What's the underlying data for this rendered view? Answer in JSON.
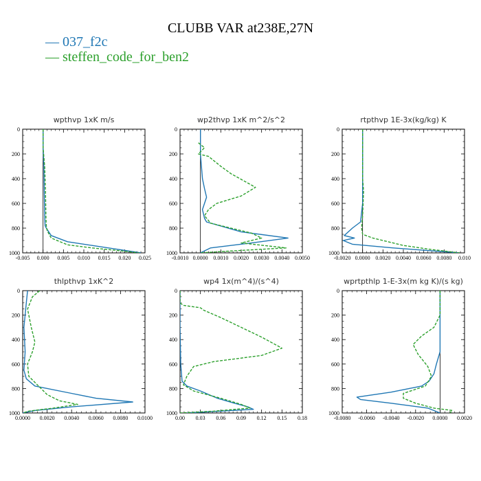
{
  "title": "CLUBB VAR at238E,27N",
  "legend": [
    {
      "label": "— 037_f2c",
      "color": "#1f77b4"
    },
    {
      "label": "— steffen_code_for_ben2",
      "color": "#2ca02c"
    }
  ],
  "chart_data": [
    {
      "type": "line",
      "title": "wpthvp  1xK m/s",
      "xlim": [
        -0.005,
        0.025
      ],
      "ylim": [
        0,
        1000
      ],
      "y_inverted": true,
      "xticks": [
        "-0.005",
        "0.000",
        "0.005",
        "0.010",
        "0.015",
        "0.020",
        "0.025"
      ],
      "yticks": [
        "0",
        "200",
        "400",
        "600",
        "800",
        "1000"
      ],
      "series": [
        {
          "name": "037_f2c",
          "color": "#1f77b4",
          "dash": "solid",
          "x": [
            0.0,
            0.0,
            0.0002,
            0.0003,
            0.0004,
            0.0005,
            0.0008,
            0.002,
            0.006,
            0.012,
            0.018,
            0.024
          ],
          "y": [
            0,
            150,
            300,
            500,
            700,
            780,
            800,
            860,
            910,
            940,
            970,
            1000
          ]
        },
        {
          "name": "steffen_code_for_ben2",
          "color": "#2ca02c",
          "dash": "dashed",
          "x": [
            0.0,
            0.0,
            0.0004,
            0.0006,
            0.0007,
            0.0008,
            0.001,
            0.002,
            0.006,
            0.012,
            0.018,
            0.0235
          ],
          "y": [
            0,
            150,
            300,
            500,
            700,
            780,
            820,
            880,
            935,
            960,
            980,
            1000
          ]
        }
      ]
    },
    {
      "type": "line",
      "title": "wp2thvp  1xK m^2/s^2",
      "xlim": [
        -0.001,
        0.005
      ],
      "ylim": [
        0,
        1000
      ],
      "y_inverted": true,
      "xticks": [
        "-0.0010",
        "0.0000",
        "0.0010",
        "0.0020",
        "0.0030",
        "0.0040",
        "0.0050"
      ],
      "yticks": [
        "0",
        "200",
        "400",
        "600",
        "800",
        "1000"
      ],
      "series": [
        {
          "name": "037_f2c",
          "color": "#1f77b4",
          "dash": "solid",
          "x": [
            0.0,
            0.0,
            0.0001,
            0.0002,
            0.0003,
            0.0002,
            0.0001,
            0.0002,
            0.0003,
            0.002,
            0.0043,
            0.0025,
            0.0005,
            0.0
          ],
          "y": [
            0,
            200,
            400,
            480,
            550,
            600,
            650,
            720,
            750,
            830,
            880,
            920,
            960,
            1000
          ]
        },
        {
          "name": "steffen_code_for_ben2",
          "color": "#2ca02c",
          "dash": "dashed",
          "x": [
            -0.0001,
            0.0002,
            -0.0001,
            0.0004,
            0.001,
            0.0015,
            0.0027,
            0.002,
            0.0008,
            0.0004,
            0.0002,
            0.0005,
            0.0015,
            0.0025,
            0.003,
            0.002,
            0.0042,
            0.002,
            0.0
          ],
          "y": [
            110,
            150,
            200,
            220,
            300,
            360,
            470,
            540,
            600,
            650,
            700,
            760,
            800,
            840,
            880,
            920,
            960,
            980,
            1000
          ]
        }
      ]
    },
    {
      "type": "line",
      "title": "rtpthvp  1E-3x(kg/kg) K",
      "xlim": [
        -0.002,
        0.01
      ],
      "ylim": [
        0,
        1000
      ],
      "y_inverted": true,
      "xticks": [
        "-0.0020",
        "0.0000",
        "0.0020",
        "0.0040",
        "0.0060",
        "0.0080",
        "0.010"
      ],
      "yticks": [
        "0",
        "200",
        "400",
        "600",
        "800",
        "1000"
      ],
      "series": [
        {
          "name": "037_f2c",
          "color": "#1f77b4",
          "dash": "solid",
          "x": [
            0.0,
            0.0,
            -0.0002,
            -0.001,
            -0.0018,
            -0.0008,
            -0.0019,
            -0.001,
            0.003,
            0.0095
          ],
          "y": [
            0,
            600,
            750,
            800,
            860,
            880,
            900,
            930,
            960,
            1000
          ]
        },
        {
          "name": "steffen_code_for_ben2",
          "color": "#2ca02c",
          "dash": "dashed",
          "x": [
            0.0,
            0.0,
            0.0001,
            0.0,
            -0.0001,
            0.0,
            0.001,
            0.002,
            0.004,
            0.0065,
            0.0085,
            0.0095
          ],
          "y": [
            0,
            400,
            500,
            700,
            800,
            850,
            880,
            900,
            940,
            970,
            990,
            1000
          ]
        }
      ]
    },
    {
      "type": "line",
      "title": "thlpthvp  1xK^2",
      "xlim": [
        0.0,
        0.01
      ],
      "ylim": [
        0,
        1000
      ],
      "y_inverted": true,
      "xticks": [
        "0.0000",
        "0.0020",
        "0.0040",
        "0.0060",
        "0.0080",
        "0.0100"
      ],
      "yticks": [
        "0",
        "200",
        "400",
        "600",
        "800",
        "1000"
      ],
      "series": [
        {
          "name": "037_f2c",
          "color": "#1f77b4",
          "dash": "solid",
          "x": [
            0.0004,
            0.0003,
            0.0001,
            0.0002,
            0.0001,
            0.0003,
            0.001,
            0.004,
            0.006,
            0.009,
            0.004,
            0.001,
            0.0
          ],
          "y": [
            0,
            100,
            300,
            500,
            650,
            720,
            780,
            840,
            880,
            910,
            950,
            980,
            1000
          ]
        },
        {
          "name": "steffen_code_for_ben2",
          "color": "#2ca02c",
          "dash": "dashed",
          "x": [
            0.0014,
            0.0008,
            0.0004,
            0.0007,
            0.001,
            0.0008,
            0.0004,
            0.0005,
            0.0015,
            0.002,
            0.003,
            0.0045,
            0.0025,
            0.0005,
            0.0
          ],
          "y": [
            0,
            50,
            150,
            300,
            420,
            500,
            600,
            700,
            800,
            850,
            900,
            930,
            960,
            985,
            1000
          ]
        }
      ]
    },
    {
      "type": "line",
      "title": "wp4  1x(m^4)/(s^4)",
      "xlim": [
        0.0,
        0.18
      ],
      "ylim": [
        0,
        1000
      ],
      "y_inverted": true,
      "xticks": [
        "0.00",
        "0.03",
        "0.06",
        "0.09",
        "0.12",
        "0.15",
        "0.18"
      ],
      "yticks": [
        "0",
        "200",
        "400",
        "600",
        "800",
        "1000"
      ],
      "series": [
        {
          "name": "037_f2c",
          "color": "#1f77b4",
          "dash": "solid",
          "x": [
            0.0,
            0.0,
            0.001,
            0.003,
            0.01,
            0.03,
            0.055,
            0.08,
            0.1,
            0.108,
            0.06,
            0.01
          ],
          "y": [
            0,
            300,
            600,
            740,
            780,
            820,
            880,
            920,
            950,
            970,
            985,
            1000
          ]
        },
        {
          "name": "steffen_code_for_ben2",
          "color": "#2ca02c",
          "dash": "dashed",
          "x": [
            0.0,
            0.0,
            0.005,
            0.03,
            0.035,
            0.06,
            0.09,
            0.12,
            0.15,
            0.12,
            0.05,
            0.02,
            0.01,
            0.005,
            0.02,
            0.06,
            0.09,
            0.103,
            0.05,
            0.0
          ],
          "y": [
            0,
            100,
            120,
            140,
            160,
            220,
            300,
            380,
            470,
            530,
            580,
            620,
            700,
            770,
            820,
            880,
            930,
            960,
            985,
            1000
          ]
        }
      ]
    },
    {
      "type": "line",
      "title": "wprtpthlp  1-E-3x(m kg K)/(s kg)",
      "xlim": [
        -0.008,
        0.002
      ],
      "ylim": [
        0,
        1000
      ],
      "y_inverted": true,
      "xticks": [
        "-0.0080",
        "-0.0060",
        "-0.0040",
        "-0.0020",
        "0.0000",
        "0.0020"
      ],
      "yticks": [
        "0",
        "200",
        "400",
        "600",
        "800",
        "1000"
      ],
      "series": [
        {
          "name": "037_f2c",
          "color": "#1f77b4",
          "dash": "solid",
          "x": [
            0.0,
            0.0,
            0.0,
            -0.0003,
            -0.0005,
            -0.0009,
            -0.0015,
            -0.004,
            -0.0068,
            -0.0065,
            -0.004,
            -0.001,
            0.0
          ],
          "y": [
            0,
            300,
            500,
            600,
            680,
            740,
            780,
            830,
            870,
            890,
            920,
            960,
            1000
          ]
        },
        {
          "name": "steffen_code_for_ben2",
          "color": "#2ca02c",
          "dash": "dashed",
          "x": [
            0.0,
            0.0,
            -0.0005,
            -0.0015,
            -0.0022,
            -0.0018,
            -0.001,
            -0.0007,
            -0.0012,
            -0.003,
            -0.003,
            -0.002,
            -0.0005,
            0.001,
            0.0008
          ],
          "y": [
            0,
            200,
            300,
            370,
            440,
            520,
            620,
            700,
            780,
            840,
            880,
            920,
            960,
            980,
            1000
          ]
        }
      ]
    }
  ]
}
